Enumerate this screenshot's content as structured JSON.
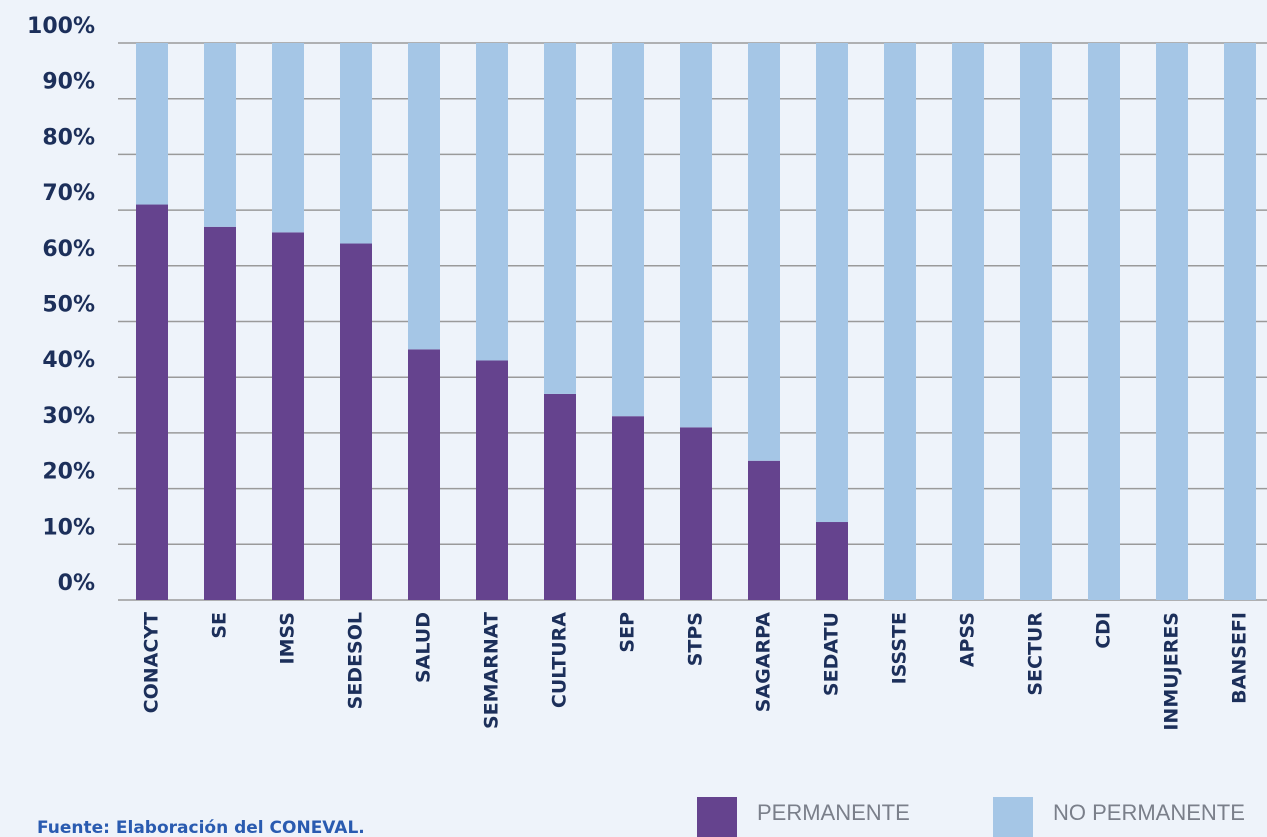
{
  "chart_data": {
    "type": "stacked_bar",
    "categories": [
      "CONACYT",
      "SE",
      "IMSS",
      "SEDESOL",
      "SALUD",
      "SEMARNAT",
      "CULTURA",
      "SEP",
      "STPS",
      "SAGARPA",
      "SEDATU",
      "ISSSTE",
      "APSS",
      "SECTUR",
      "CDI",
      "INMUJERES",
      "BANSEFI"
    ],
    "series": [
      {
        "name": "PERMANENTE",
        "color": "#65438e",
        "values": [
          71,
          67,
          66,
          64,
          45,
          43,
          37,
          33,
          31,
          25,
          14,
          0,
          0,
          0,
          0,
          0,
          0
        ]
      },
      {
        "name": "NO PERMANENTE",
        "color": "#a5c6e6",
        "values": [
          29,
          33,
          34,
          36,
          55,
          57,
          63,
          67,
          69,
          75,
          86,
          100,
          100,
          100,
          100,
          100,
          100
        ]
      }
    ],
    "ylim": [
      0,
      100
    ],
    "yticks": [
      {
        "value": 0,
        "label": "0%"
      },
      {
        "value": 10,
        "label": "10%"
      },
      {
        "value": 20,
        "label": "20%"
      },
      {
        "value": 30,
        "label": "30%"
      },
      {
        "value": 40,
        "label": "40%"
      },
      {
        "value": 50,
        "label": "50%"
      },
      {
        "value": 60,
        "label": "60%"
      },
      {
        "value": 70,
        "label": "70%"
      },
      {
        "value": 80,
        "label": "80%"
      },
      {
        "value": 90,
        "label": "90%"
      },
      {
        "value": 100,
        "label": "100%"
      }
    ],
    "grid": true,
    "legend": "bottom-right",
    "source": "Fuente: Elaboración del CONEVAL."
  }
}
